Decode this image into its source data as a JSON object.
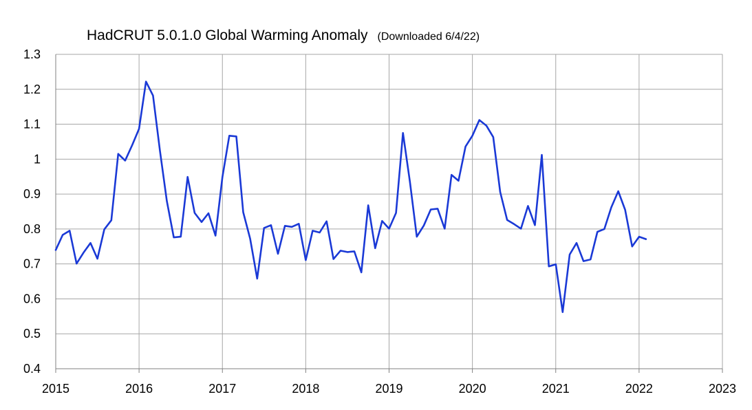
{
  "chart_data": {
    "type": "line",
    "title": "HadCRUT 5.0.1.0   Global Warming Anomaly",
    "subtitle": "(Downloaded 6/4/22)",
    "xlabel": "",
    "ylabel": "",
    "xlim": [
      2015,
      2023
    ],
    "ylim": [
      0.4,
      1.3
    ],
    "xticks": [
      "2015",
      "2016",
      "2017",
      "2018",
      "2019",
      "2020",
      "2021",
      "2022",
      "2023"
    ],
    "yticks": [
      "0.4",
      "0.5",
      "0.6",
      "0.7",
      "0.8",
      "0.9",
      "1",
      "1.1",
      "1.2",
      "1.3"
    ],
    "grid": true,
    "legend": "none",
    "series_color": "#1a39d6",
    "series": [
      {
        "x": [
          2015.0,
          2015.083,
          2015.167,
          2015.25,
          2015.333,
          2015.417,
          2015.5,
          2015.583,
          2015.667,
          2015.75,
          2015.833,
          2015.917,
          2016.0,
          2016.083,
          2016.167,
          2016.25,
          2016.333,
          2016.417,
          2016.5,
          2016.583,
          2016.667,
          2016.75,
          2016.833,
          2016.917,
          2017.0,
          2017.083,
          2017.167,
          2017.25,
          2017.333,
          2017.417,
          2017.5,
          2017.583,
          2017.667,
          2017.75,
          2017.833,
          2017.917,
          2018.0,
          2018.083,
          2018.167,
          2018.25,
          2018.333,
          2018.417,
          2018.5,
          2018.583,
          2018.667,
          2018.75,
          2018.833,
          2018.917,
          2019.0,
          2019.083,
          2019.167,
          2019.25,
          2019.333,
          2019.417,
          2019.5,
          2019.583,
          2019.667,
          2019.75,
          2019.833,
          2019.917,
          2020.0,
          2020.083,
          2020.167,
          2020.25,
          2020.333,
          2020.417,
          2020.5,
          2020.583,
          2020.667,
          2020.75,
          2020.833,
          2020.917,
          2021.0,
          2021.083,
          2021.167,
          2021.25,
          2021.333,
          2021.417,
          2021.5,
          2021.583,
          2021.667,
          2021.75,
          2021.833,
          2021.917,
          2022.0,
          2022.083
        ],
        "values": [
          0.74,
          0.783,
          0.795,
          0.701,
          0.732,
          0.76,
          0.715,
          0.799,
          0.825,
          1.015,
          0.996,
          1.04,
          1.087,
          1.222,
          1.182,
          1.025,
          0.88,
          0.776,
          0.778,
          0.949,
          0.846,
          0.82,
          0.845,
          0.781,
          0.949,
          1.067,
          1.065,
          0.848,
          0.772,
          0.658,
          0.803,
          0.811,
          0.729,
          0.809,
          0.806,
          0.815,
          0.711,
          0.795,
          0.79,
          0.822,
          0.714,
          0.738,
          0.734,
          0.736,
          0.676,
          0.868,
          0.745,
          0.823,
          0.801,
          0.846,
          1.075,
          0.935,
          0.778,
          0.81,
          0.856,
          0.858,
          0.801,
          0.955,
          0.938,
          1.036,
          1.067,
          1.112,
          1.096,
          1.063,
          0.906,
          0.826,
          0.814,
          0.801,
          0.866,
          0.811,
          1.012,
          0.693,
          0.699,
          0.562,
          0.727,
          0.76,
          0.708,
          0.713,
          0.792,
          0.8,
          0.862,
          0.908,
          0.855,
          0.75,
          0.778,
          0.771
        ]
      }
    ]
  }
}
